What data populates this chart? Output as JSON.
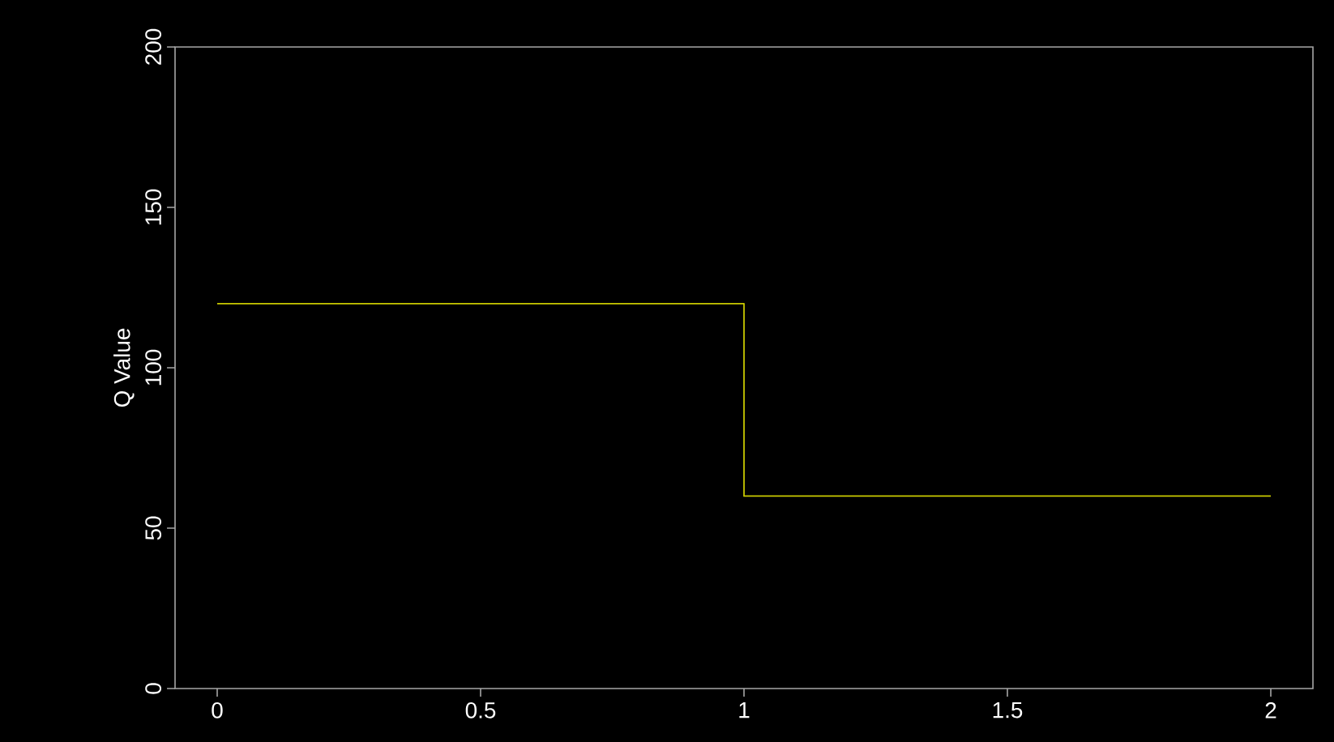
{
  "chart_data": {
    "type": "step",
    "ylabel": "Q Value",
    "x": [
      0,
      1,
      2
    ],
    "series": [
      {
        "color": "#c8c800",
        "values": [
          120,
          60,
          60
        ]
      }
    ],
    "xlim": [
      -0.08,
      2.08
    ],
    "ylim": [
      0,
      200
    ],
    "xticks": [
      0,
      0.5,
      1,
      1.5,
      2
    ],
    "yticks": [
      0,
      50,
      100,
      150,
      200
    ],
    "grid": false
  }
}
